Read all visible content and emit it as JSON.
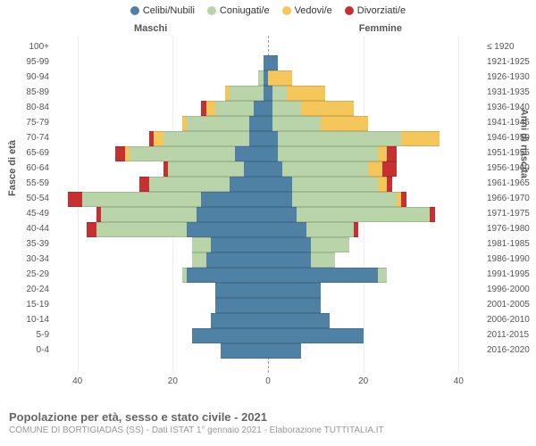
{
  "legend": [
    {
      "label": "Celibi/Nubili",
      "color": "#4f81a5"
    },
    {
      "label": "Coniugati/e",
      "color": "#b8d4a8"
    },
    {
      "label": "Vedovi/e",
      "color": "#f5c65a"
    },
    {
      "label": "Divorziati/e",
      "color": "#c73030"
    }
  ],
  "chart": {
    "type": "population-pyramid",
    "x_max": 45,
    "x_ticks": [
      40,
      20,
      0,
      20,
      40
    ],
    "grid_positions": [
      -40,
      -20,
      20,
      40
    ],
    "background_color": "#ffffff",
    "grid_color": "#eeeeee",
    "centerline_color": "#999999",
    "colors": {
      "single": "#4f81a5",
      "married": "#b8d4a8",
      "widowed": "#f5c65a",
      "divorced": "#c73030"
    },
    "male_label": "Maschi",
    "female_label": "Femmine",
    "y_left_title": "Fasce di età",
    "y_right_title": "Anni di nascita",
    "age_bands": [
      {
        "age": "100+",
        "birth": "≤ 1920",
        "m": [
          0,
          0,
          0,
          0
        ],
        "f": [
          0,
          0,
          0,
          0
        ]
      },
      {
        "age": "95-99",
        "birth": "1921-1925",
        "m": [
          1,
          0,
          0,
          0
        ],
        "f": [
          2,
          0,
          0,
          0
        ]
      },
      {
        "age": "90-94",
        "birth": "1926-1930",
        "m": [
          1,
          1,
          0,
          0
        ],
        "f": [
          0,
          0,
          5,
          0
        ]
      },
      {
        "age": "85-89",
        "birth": "1931-1935",
        "m": [
          1,
          7,
          1,
          0
        ],
        "f": [
          1,
          3,
          8,
          0
        ]
      },
      {
        "age": "80-84",
        "birth": "1936-1940",
        "m": [
          3,
          8,
          2,
          1
        ],
        "f": [
          1,
          6,
          11,
          0
        ]
      },
      {
        "age": "75-79",
        "birth": "1941-1945",
        "m": [
          4,
          13,
          1,
          0
        ],
        "f": [
          1,
          10,
          10,
          0
        ]
      },
      {
        "age": "70-74",
        "birth": "1946-1950",
        "m": [
          4,
          18,
          2,
          1
        ],
        "f": [
          2,
          26,
          8,
          0
        ]
      },
      {
        "age": "65-69",
        "birth": "1951-1955",
        "m": [
          7,
          22,
          1,
          2
        ],
        "f": [
          2,
          21,
          2,
          2
        ]
      },
      {
        "age": "60-64",
        "birth": "1956-1960",
        "m": [
          5,
          16,
          0,
          1
        ],
        "f": [
          3,
          18,
          3,
          3
        ]
      },
      {
        "age": "55-59",
        "birth": "1961-1965",
        "m": [
          8,
          17,
          0,
          2
        ],
        "f": [
          5,
          18,
          2,
          1
        ]
      },
      {
        "age": "50-54",
        "birth": "1966-1970",
        "m": [
          14,
          25,
          0,
          3
        ],
        "f": [
          5,
          22,
          1,
          1
        ]
      },
      {
        "age": "45-49",
        "birth": "1971-1975",
        "m": [
          15,
          20,
          0,
          1
        ],
        "f": [
          6,
          28,
          0,
          1
        ]
      },
      {
        "age": "40-44",
        "birth": "1976-1980",
        "m": [
          17,
          19,
          0,
          2
        ],
        "f": [
          8,
          10,
          0,
          1
        ]
      },
      {
        "age": "35-39",
        "birth": "1981-1985",
        "m": [
          12,
          4,
          0,
          0
        ],
        "f": [
          9,
          8,
          0,
          0
        ]
      },
      {
        "age": "30-34",
        "birth": "1986-1990",
        "m": [
          13,
          3,
          0,
          0
        ],
        "f": [
          9,
          5,
          0,
          0
        ]
      },
      {
        "age": "25-29",
        "birth": "1991-1995",
        "m": [
          17,
          1,
          0,
          0
        ],
        "f": [
          23,
          2,
          0,
          0
        ]
      },
      {
        "age": "20-24",
        "birth": "1996-2000",
        "m": [
          11,
          0,
          0,
          0
        ],
        "f": [
          11,
          0,
          0,
          0
        ]
      },
      {
        "age": "15-19",
        "birth": "2001-2005",
        "m": [
          11,
          0,
          0,
          0
        ],
        "f": [
          11,
          0,
          0,
          0
        ]
      },
      {
        "age": "10-14",
        "birth": "2006-2010",
        "m": [
          12,
          0,
          0,
          0
        ],
        "f": [
          13,
          0,
          0,
          0
        ]
      },
      {
        "age": "5-9",
        "birth": "2011-2015",
        "m": [
          16,
          0,
          0,
          0
        ],
        "f": [
          20,
          0,
          0,
          0
        ]
      },
      {
        "age": "0-4",
        "birth": "2016-2020",
        "m": [
          10,
          0,
          0,
          0
        ],
        "f": [
          7,
          0,
          0,
          0
        ]
      }
    ]
  },
  "titles": {
    "main": "Popolazione per età, sesso e stato civile - 2021",
    "sub": "COMUNE DI BORTIGIADAS (SS) - Dati ISTAT 1° gennaio 2021 - Elaborazione TUTTITALIA.IT"
  }
}
